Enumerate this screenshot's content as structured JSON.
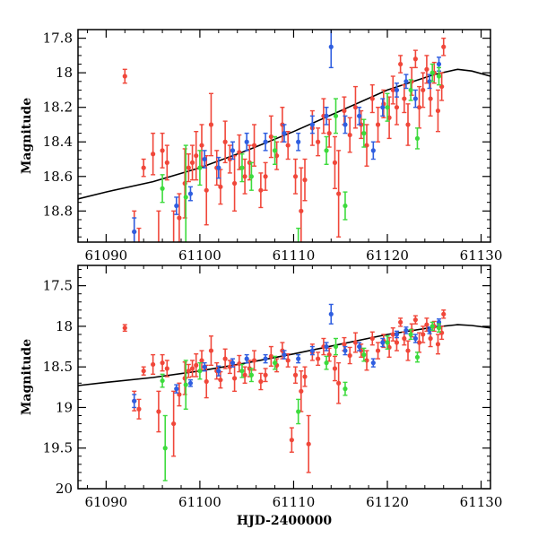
{
  "chart_data": [
    {
      "type": "scatter",
      "title": "",
      "xlabel": "",
      "ylabel": "Magnitude",
      "xlim": [
        61087,
        61131
      ],
      "ylim": [
        18.98,
        17.75
      ],
      "y_inverted": true,
      "xticks": [
        61090,
        61100,
        61110,
        61120,
        61130
      ],
      "yticks": [
        17.8,
        18,
        18.2,
        18.4,
        18.6,
        18.8
      ],
      "xtick_labels": [
        "61090",
        "61100",
        "61110",
        "61120",
        "61130"
      ],
      "ytick_labels": [
        "17.8",
        "18",
        "18.2",
        "18.4",
        "18.6",
        "18.8"
      ],
      "grid": false,
      "legend": "none"
    },
    {
      "type": "scatter",
      "title": "",
      "xlabel": "HJD-2400000",
      "ylabel": "Magnitude",
      "xlim": [
        61087,
        61131
      ],
      "ylim": [
        20,
        17.25
      ],
      "y_inverted": true,
      "xticks": [
        61090,
        61100,
        61110,
        61120,
        61130
      ],
      "yticks": [
        17.5,
        18,
        18.5,
        19,
        19.5,
        20
      ],
      "xtick_labels": [
        "61090",
        "61100",
        "61110",
        "61120",
        "61130"
      ],
      "ytick_labels": [
        "17.5",
        "18",
        "18.5",
        "19",
        "19.5",
        "20"
      ],
      "grid": false,
      "legend": "none"
    }
  ],
  "series": [
    {
      "name": "red",
      "color": "#f0473a",
      "points": [
        [
          61092.0,
          18.02,
          0.04
        ],
        [
          61093.0,
          18.92,
          0.12
        ],
        [
          61093.5,
          19.02,
          0.12
        ],
        [
          61094.0,
          18.55,
          0.05
        ],
        [
          61095.0,
          18.47,
          0.12
        ],
        [
          61095.6,
          19.05,
          0.25
        ],
        [
          61096.0,
          18.45,
          0.1
        ],
        [
          61096.5,
          18.52,
          0.1
        ],
        [
          61097.2,
          19.2,
          0.4
        ],
        [
          61097.8,
          18.84,
          0.14
        ],
        [
          61098.4,
          18.64,
          0.2
        ],
        [
          61098.8,
          18.55,
          0.08
        ],
        [
          61099.2,
          18.52,
          0.1
        ],
        [
          61099.6,
          18.48,
          0.14
        ],
        [
          61100.2,
          18.42,
          0.12
        ],
        [
          61100.7,
          18.68,
          0.2
        ],
        [
          61101.2,
          18.3,
          0.18
        ],
        [
          61101.8,
          18.55,
          0.1
        ],
        [
          61102.2,
          18.66,
          0.1
        ],
        [
          61102.7,
          18.4,
          0.12
        ],
        [
          61103.2,
          18.5,
          0.08
        ],
        [
          61103.7,
          18.64,
          0.16
        ],
        [
          61104.2,
          18.46,
          0.1
        ],
        [
          61104.8,
          18.6,
          0.1
        ],
        [
          61105.3,
          18.52,
          0.1
        ],
        [
          61105.8,
          18.42,
          0.12
        ],
        [
          61106.5,
          18.68,
          0.1
        ],
        [
          61107.0,
          18.6,
          0.08
        ],
        [
          61107.6,
          18.37,
          0.12
        ],
        [
          61108.2,
          18.48,
          0.08
        ],
        [
          61108.8,
          18.3,
          0.1
        ],
        [
          61109.4,
          18.42,
          0.08
        ],
        [
          61109.8,
          19.4,
          0.15
        ],
        [
          61110.2,
          18.6,
          0.1
        ],
        [
          61110.8,
          18.8,
          0.25
        ],
        [
          61111.2,
          18.62,
          0.12
        ],
        [
          61111.6,
          19.45,
          0.35
        ],
        [
          61112.0,
          18.32,
          0.1
        ],
        [
          61112.6,
          18.4,
          0.08
        ],
        [
          61113.2,
          18.25,
          0.1
        ],
        [
          61113.8,
          18.35,
          0.08
        ],
        [
          61114.4,
          18.52,
          0.15
        ],
        [
          61114.8,
          18.7,
          0.25
        ],
        [
          61115.4,
          18.22,
          0.08
        ],
        [
          61116.0,
          18.36,
          0.1
        ],
        [
          61116.6,
          18.2,
          0.12
        ],
        [
          61117.2,
          18.3,
          0.08
        ],
        [
          61117.8,
          18.42,
          0.12
        ],
        [
          61118.4,
          18.15,
          0.08
        ],
        [
          61119.0,
          18.3,
          0.1
        ],
        [
          61119.6,
          18.18,
          0.08
        ],
        [
          61120.2,
          18.26,
          0.12
        ],
        [
          61120.6,
          18.1,
          0.08
        ],
        [
          61121.0,
          18.2,
          0.1
        ],
        [
          61121.4,
          17.95,
          0.05
        ],
        [
          61121.8,
          18.15,
          0.08
        ],
        [
          61122.2,
          18.3,
          0.12
        ],
        [
          61122.6,
          18.05,
          0.08
        ],
        [
          61123.0,
          17.92,
          0.05
        ],
        [
          61123.4,
          18.2,
          0.12
        ],
        [
          61123.8,
          18.1,
          0.1
        ],
        [
          61124.2,
          17.98,
          0.08
        ],
        [
          61124.6,
          18.15,
          0.1
        ],
        [
          61125.0,
          18.0,
          0.06
        ],
        [
          61125.4,
          18.22,
          0.12
        ],
        [
          61125.8,
          18.08,
          0.08
        ],
        [
          61126.0,
          17.85,
          0.05
        ]
      ]
    },
    {
      "name": "blue",
      "color": "#2f5ee0",
      "points": [
        [
          61093.0,
          18.92,
          0.08
        ],
        [
          61097.5,
          18.77,
          0.05
        ],
        [
          61099.0,
          18.7,
          0.04
        ],
        [
          61100.5,
          18.5,
          0.05
        ],
        [
          61102.0,
          18.55,
          0.06
        ],
        [
          61103.5,
          18.45,
          0.05
        ],
        [
          61105.0,
          18.4,
          0.05
        ],
        [
          61107.0,
          18.4,
          0.05
        ],
        [
          61109.0,
          18.35,
          0.05
        ],
        [
          61110.5,
          18.4,
          0.05
        ],
        [
          61112.0,
          18.3,
          0.05
        ],
        [
          61113.5,
          18.25,
          0.05
        ],
        [
          61114.0,
          17.85,
          0.12
        ],
        [
          61115.5,
          18.3,
          0.05
        ],
        [
          61117.0,
          18.25,
          0.05
        ],
        [
          61118.5,
          18.45,
          0.05
        ],
        [
          61119.5,
          18.2,
          0.05
        ],
        [
          61121.0,
          18.1,
          0.04
        ],
        [
          61122.0,
          18.05,
          0.04
        ],
        [
          61123.0,
          18.15,
          0.05
        ],
        [
          61124.5,
          18.05,
          0.04
        ],
        [
          61125.5,
          17.95,
          0.04
        ]
      ]
    },
    {
      "name": "green",
      "color": "#3ddb3d",
      "points": [
        [
          61096.0,
          18.67,
          0.08
        ],
        [
          61096.3,
          19.5,
          0.4
        ],
        [
          61098.5,
          18.72,
          0.3
        ],
        [
          61100.0,
          18.55,
          0.1
        ],
        [
          61104.5,
          18.55,
          0.08
        ],
        [
          61105.5,
          18.6,
          0.08
        ],
        [
          61108.0,
          18.45,
          0.08
        ],
        [
          61110.5,
          19.05,
          0.15
        ],
        [
          61113.5,
          18.45,
          0.08
        ],
        [
          61114.5,
          18.25,
          0.1
        ],
        [
          61115.5,
          18.77,
          0.08
        ],
        [
          61117.5,
          18.35,
          0.08
        ],
        [
          61120.0,
          18.2,
          0.08
        ],
        [
          61122.5,
          18.1,
          0.06
        ],
        [
          61123.2,
          18.38,
          0.06
        ],
        [
          61124.8,
          18.0,
          0.05
        ],
        [
          61125.5,
          18.02,
          0.05
        ]
      ]
    }
  ],
  "model_curve": {
    "name": "model",
    "color": "#000000",
    "points": [
      [
        61087,
        18.73
      ],
      [
        61090,
        18.69
      ],
      [
        61095,
        18.63
      ],
      [
        61100,
        18.55
      ],
      [
        61105,
        18.45
      ],
      [
        61110,
        18.34
      ],
      [
        61115,
        18.22
      ],
      [
        61120,
        18.1
      ],
      [
        61125,
        18.01
      ],
      [
        61127.5,
        17.98
      ],
      [
        61129,
        17.99
      ],
      [
        61131,
        18.02
      ]
    ]
  }
}
